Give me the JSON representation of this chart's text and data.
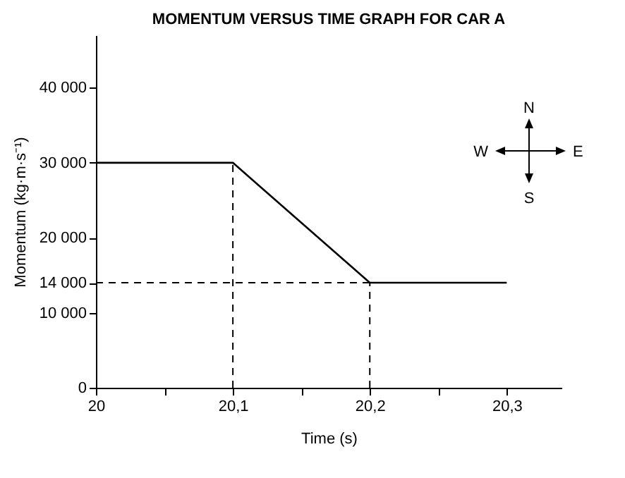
{
  "chart_data": {
    "type": "line",
    "title": "MOMENTUM VERSUS TIME GRAPH FOR CAR A",
    "xlabel": "Time (s)",
    "ylabel": "Momentum (kg·m·s⁻¹)",
    "x": [
      20,
      20.1,
      20.2,
      20.3
    ],
    "series": [
      {
        "color": "#000000",
        "values": [
          30000,
          30000,
          14000,
          14000
        ]
      }
    ],
    "xlim": [
      20,
      20.34
    ],
    "ylim": [
      0,
      47000
    ],
    "xticks": [
      20,
      {
        "value": 20.05,
        "label": null
      },
      {
        "value": 20.1,
        "label": "20,1"
      },
      {
        "value": 20.15,
        "label": null
      },
      {
        "value": 20.2,
        "label": "20,2"
      },
      {
        "value": 20.25,
        "label": null
      },
      {
        "value": 20.3,
        "label": "20,3"
      }
    ],
    "yticks": [
      0,
      {
        "value": 10000,
        "label": "10 000"
      },
      {
        "value": 14000,
        "label": "14 000"
      },
      {
        "value": 20000,
        "label": "20 000"
      },
      {
        "value": 30000,
        "label": "30 000"
      },
      {
        "value": 40000,
        "label": "40 000"
      }
    ],
    "ref_lines": [
      {
        "axis": "x",
        "value": 20.1,
        "line_style": "dashed"
      },
      {
        "axis": "x",
        "value": 20.2,
        "line_style": "dashed"
      },
      {
        "axis": "y",
        "value": 14000,
        "line_style": "dashed"
      }
    ],
    "annotations": [
      "N",
      "E",
      "S",
      "W"
    ],
    "grid": false,
    "marker": "none",
    "line_style": "solid"
  }
}
